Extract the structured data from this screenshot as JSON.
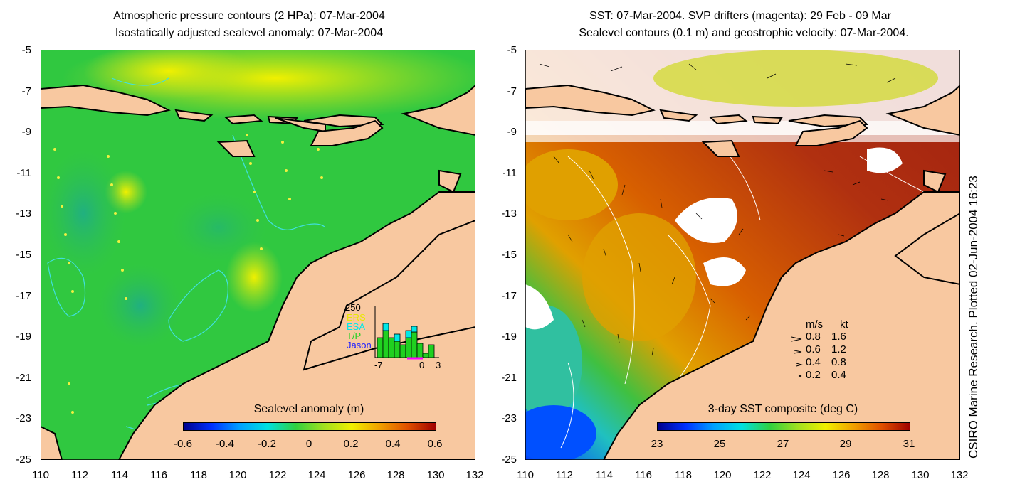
{
  "left_panel": {
    "title_line1": "Atmospheric pressure contours (2 HPa): 07-Mar-2004",
    "title_line2": "Isostatically adjusted sealevel anomaly: 07-Mar-2004",
    "colorbar_label": "Sealevel anomaly (m)",
    "colorbar_ticks": [
      "-0.6",
      "-0.4",
      "-0.2",
      "0",
      "0.2",
      "0.4",
      "0.6"
    ],
    "inset": {
      "ymax_label": "250",
      "missions": [
        {
          "name": "ERS",
          "color": "#e8e800"
        },
        {
          "name": "ESA",
          "color": "#00e8e8"
        },
        {
          "name": "T/P",
          "color": "#20d020"
        },
        {
          "name": "Jason",
          "color": "#2020ff"
        }
      ],
      "x_ticks": [
        "-7",
        "0",
        "3"
      ]
    }
  },
  "right_panel": {
    "title_line1": "SST: 07-Mar-2004. SVP drifters (magenta): 29 Feb - 09 Mar",
    "title_line2": "Sealevel contours (0.1 m) and geostrophic velocity: 07-Mar-2004.",
    "colorbar_label": "3-day SST composite (deg C)",
    "colorbar_ticks": [
      "23",
      "25",
      "27",
      "29",
      "31"
    ],
    "velocity_legend": {
      "header_ms": "m/s",
      "header_kt": "kt",
      "rows": [
        {
          "ms": "0.8",
          "kt": "1.6"
        },
        {
          "ms": "0.6",
          "kt": "1.2"
        },
        {
          "ms": "0.4",
          "kt": "0.8"
        },
        {
          "ms": "0.2",
          "kt": "0.4"
        }
      ]
    }
  },
  "axes": {
    "y_ticks": [
      "-5",
      "-7",
      "-9",
      "-11",
      "-13",
      "-15",
      "-17",
      "-19",
      "-21",
      "-23",
      "-25"
    ],
    "x_ticks": [
      "110",
      "112",
      "114",
      "116",
      "118",
      "120",
      "122",
      "124",
      "126",
      "128",
      "130",
      "132"
    ]
  },
  "credit": "CSIRO Marine Research. Plotted 02-Jun-2004 16:23",
  "colors": {
    "land": "#f8c8a0",
    "coast": "#000000",
    "pressure_contour": "#40e0e0",
    "sealevel_contour": "#ffffff"
  }
}
